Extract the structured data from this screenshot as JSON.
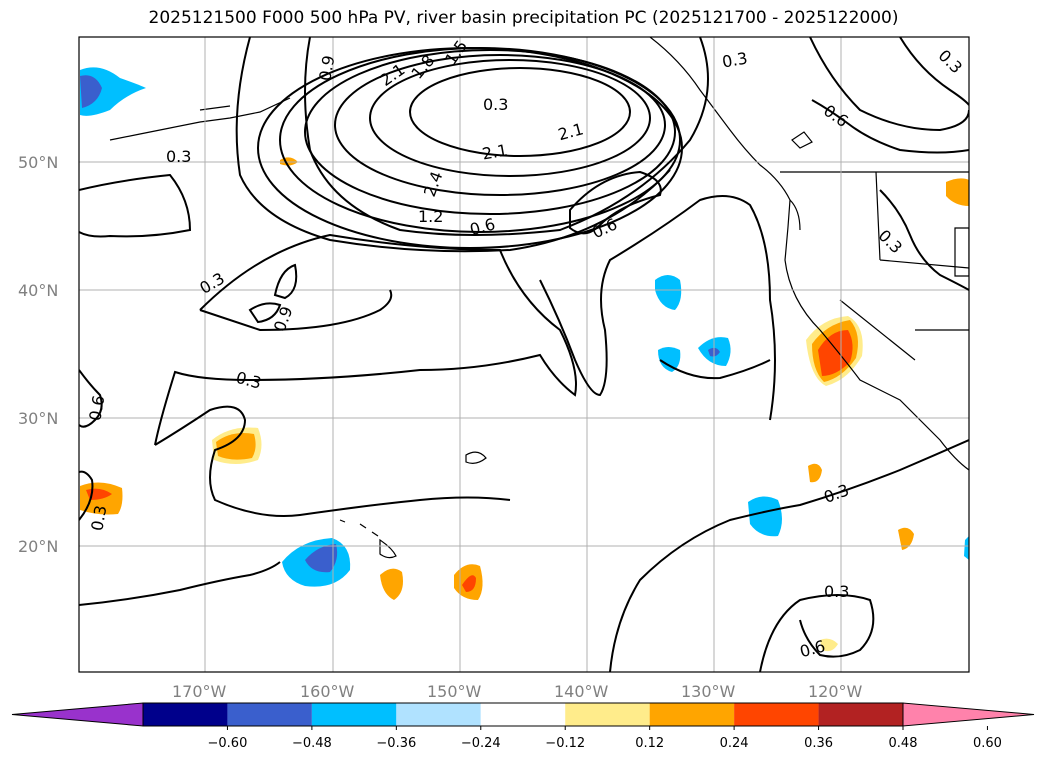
{
  "title": "2025121500 F000 500 hPa PV, river basin precipitation PC (2025121700 - 2025122000)",
  "lat_labels": [
    "50°N",
    "40°N",
    "30°N",
    "20°N"
  ],
  "lon_labels": [
    "170°W",
    "160°W",
    "150°W",
    "140°W",
    "130°W",
    "120°W"
  ],
  "pv_contour_labels": [
    "0.3",
    "0.6",
    "0.9",
    "1.2",
    "1.5",
    "1.8",
    "2.1",
    "2.4"
  ],
  "colorbar": {
    "ticks": [
      "−0.60",
      "−0.48",
      "−0.36",
      "−0.24",
      "−0.12",
      "0.12",
      "0.24",
      "0.36",
      "0.48",
      "0.60"
    ],
    "colors": [
      "#9932CC",
      "#00008B",
      "#3A5FCD",
      "#00BFFF",
      "#B0E2FF",
      "#FFFFFF",
      "#FFEC8B",
      "#FFA500",
      "#FF4500",
      "#B22222",
      "#FF82AB"
    ]
  },
  "colors": {
    "land": "#000000",
    "grid": "#b0b0b0",
    "contour": "#000000"
  }
}
